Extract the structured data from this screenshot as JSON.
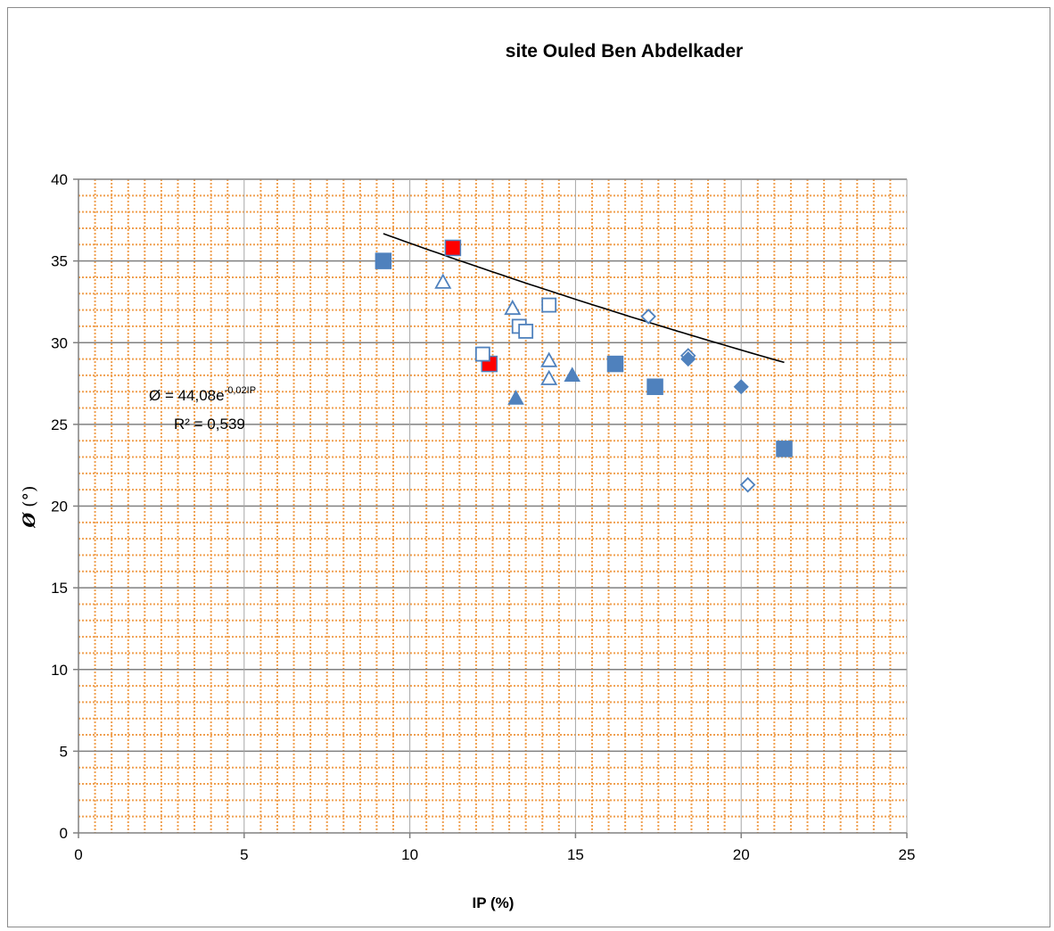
{
  "chart_data": {
    "type": "scatter",
    "title": "site Ouled Ben Abdelkader",
    "xlabel": "IP (%)",
    "ylabel": {
      "symbol": "Ø",
      "unit": " (°)"
    },
    "xlim": [
      0,
      25
    ],
    "ylim": [
      0,
      40
    ],
    "x_ticks": [
      0,
      5,
      10,
      15,
      20,
      25
    ],
    "y_ticks": [
      0,
      5,
      10,
      15,
      20,
      25,
      30,
      35,
      40
    ],
    "grid": {
      "major": true,
      "minor": true,
      "major_color": "#808080",
      "minor_color": "#f0a050"
    },
    "series": [
      {
        "marker": "square",
        "filled": true,
        "color": "#4f81bd",
        "points": [
          [
            9.2,
            35.0
          ],
          [
            16.2,
            28.7
          ],
          [
            17.4,
            27.3
          ],
          [
            21.3,
            23.5
          ]
        ]
      },
      {
        "marker": "square",
        "filled": true,
        "color": "#ff0000",
        "points": [
          [
            11.3,
            35.8
          ],
          [
            12.4,
            28.7
          ]
        ]
      },
      {
        "marker": "square",
        "filled": false,
        "color": "#4f81bd",
        "points": [
          [
            12.2,
            29.3
          ],
          [
            13.3,
            31.0
          ],
          [
            13.5,
            30.7
          ],
          [
            14.2,
            32.3
          ]
        ]
      },
      {
        "marker": "triangle",
        "filled": false,
        "color": "#4f81bd",
        "points": [
          [
            11.0,
            33.7
          ],
          [
            13.1,
            32.1
          ],
          [
            14.2,
            28.9
          ],
          [
            14.2,
            27.8
          ]
        ]
      },
      {
        "marker": "triangle",
        "filled": true,
        "color": "#4f81bd",
        "points": [
          [
            13.2,
            26.6
          ],
          [
            14.9,
            28.0
          ]
        ]
      },
      {
        "marker": "diamond",
        "filled": false,
        "color": "#4f81bd",
        "points": [
          [
            17.2,
            31.6
          ],
          [
            18.4,
            29.2
          ],
          [
            20.2,
            21.3
          ]
        ]
      },
      {
        "marker": "diamond",
        "filled": true,
        "color": "#4f81bd",
        "points": [
          [
            18.4,
            29.0
          ],
          [
            20.0,
            27.3
          ]
        ]
      }
    ],
    "trendline": {
      "type": "exponential",
      "a": 44.08,
      "b": -0.02,
      "x_range": [
        9.2,
        21.3
      ],
      "color": "#000000"
    },
    "annotation": {
      "equation_prefix": "Ø = 44,08e",
      "equation_exponent": "-0,02IP",
      "r2": "R² = 0,539"
    }
  }
}
